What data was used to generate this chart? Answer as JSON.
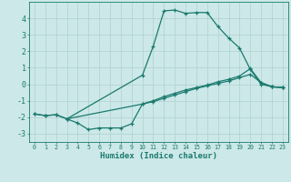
{
  "title": "",
  "xlabel": "Humidex (Indice chaleur)",
  "ylabel": "",
  "background_color": "#cce8e8",
  "grid_color": "#aacccc",
  "line_color": "#1a7a6e",
  "xlim": [
    -0.5,
    23.5
  ],
  "ylim": [
    -3.5,
    5.0
  ],
  "yticks": [
    -3,
    -2,
    -1,
    0,
    1,
    2,
    3,
    4
  ],
  "xticks": [
    0,
    1,
    2,
    3,
    4,
    5,
    6,
    7,
    8,
    9,
    10,
    11,
    12,
    13,
    14,
    15,
    16,
    17,
    18,
    19,
    20,
    21,
    22,
    23
  ],
  "series1_x": [
    0,
    1,
    2,
    3,
    10,
    11,
    12,
    13,
    14,
    15,
    16,
    17,
    18,
    19,
    20,
    21,
    22,
    23
  ],
  "series1_y": [
    -1.8,
    -1.9,
    -1.85,
    -2.1,
    0.55,
    2.3,
    4.45,
    4.5,
    4.3,
    4.35,
    4.35,
    3.5,
    2.8,
    2.2,
    0.9,
    0.0,
    -0.15,
    -0.2
  ],
  "series2_x": [
    0,
    1,
    2,
    3,
    10,
    11,
    12,
    13,
    14,
    15,
    16,
    17,
    18,
    19,
    20,
    21,
    22,
    23
  ],
  "series2_y": [
    -1.8,
    -1.9,
    -1.85,
    -2.1,
    -1.2,
    -1.0,
    -0.75,
    -0.55,
    -0.35,
    -0.2,
    -0.05,
    0.15,
    0.3,
    0.5,
    0.95,
    0.1,
    -0.15,
    -0.2
  ],
  "series3_x": [
    3,
    4,
    5,
    6,
    7,
    8,
    9,
    10,
    11,
    12,
    13,
    14,
    15,
    16,
    17,
    18,
    19,
    20,
    21,
    22,
    23
  ],
  "series3_y": [
    -2.1,
    -2.35,
    -2.75,
    -2.65,
    -2.65,
    -2.65,
    -2.4,
    -1.2,
    -1.05,
    -0.85,
    -0.65,
    -0.45,
    -0.25,
    -0.1,
    0.05,
    0.2,
    0.4,
    0.6,
    0.1,
    -0.15,
    -0.2
  ]
}
